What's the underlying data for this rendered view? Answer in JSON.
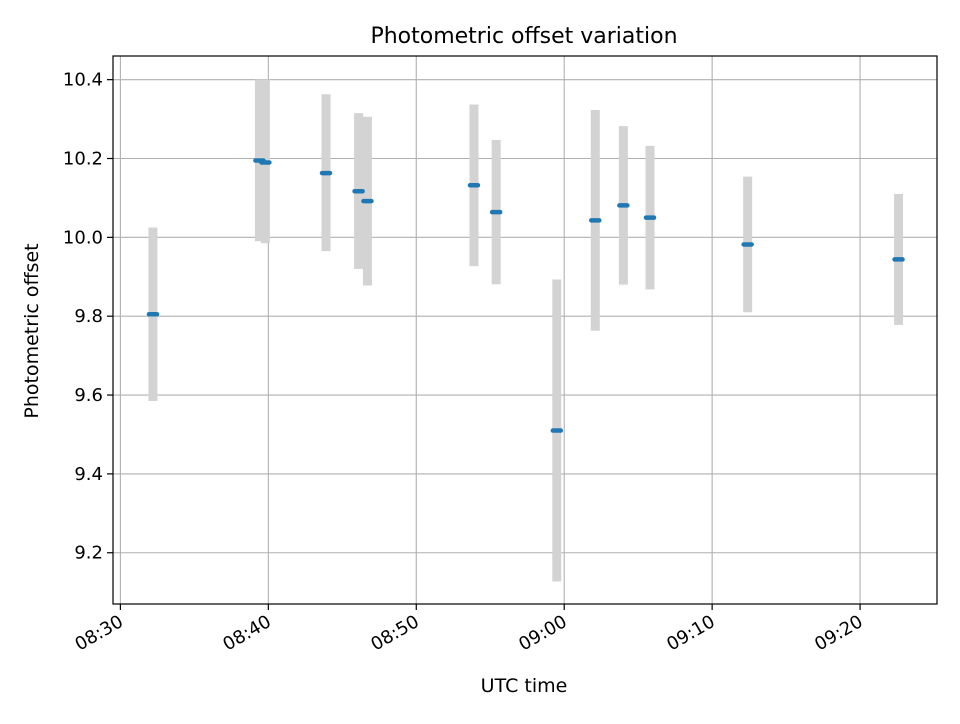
{
  "chart_data": {
    "type": "scatter",
    "title": "Photometric offset variation",
    "xlabel": "UTC time",
    "ylabel": "Photometric offset",
    "x_ticks": [
      "08:30",
      "08:40",
      "08:50",
      "09:00",
      "09:10",
      "09:20"
    ],
    "y_ticks": [
      "9.2",
      "9.4",
      "9.6",
      "9.8",
      "10.0",
      "10.2",
      "10.4"
    ],
    "xlim": [
      "08:29.5",
      "09:25.2"
    ],
    "ylim": [
      9.07,
      10.46
    ],
    "grid": true,
    "colors": {
      "marker": "#1f77b4",
      "errorbar": "#d3d3d3",
      "grid": "#b0b0b0"
    },
    "series": [
      {
        "points": [
          {
            "x": "08:32.2",
            "y": 9.805,
            "ylow": 9.585,
            "yhigh": 10.025
          },
          {
            "x": "08:39.4",
            "y": 10.195,
            "ylow": 9.99,
            "yhigh": 10.4
          },
          {
            "x": "08:39.8",
            "y": 10.19,
            "ylow": 9.985,
            "yhigh": 10.4
          },
          {
            "x": "08:43.9",
            "y": 10.163,
            "ylow": 9.965,
            "yhigh": 10.363
          },
          {
            "x": "08:46.1",
            "y": 10.117,
            "ylow": 9.92,
            "yhigh": 10.315
          },
          {
            "x": "08:46.7",
            "y": 10.092,
            "ylow": 9.878,
            "yhigh": 10.306
          },
          {
            "x": "08:53.9",
            "y": 10.132,
            "ylow": 9.927,
            "yhigh": 10.337
          },
          {
            "x": "08:55.4",
            "y": 10.064,
            "ylow": 9.881,
            "yhigh": 10.247
          },
          {
            "x": "08:59.5",
            "y": 9.51,
            "ylow": 9.127,
            "yhigh": 9.893
          },
          {
            "x": "09:02.1",
            "y": 10.043,
            "ylow": 9.763,
            "yhigh": 10.323
          },
          {
            "x": "09:04.0",
            "y": 10.081,
            "ylow": 9.88,
            "yhigh": 10.282
          },
          {
            "x": "09:05.8",
            "y": 10.05,
            "ylow": 9.868,
            "yhigh": 10.232
          },
          {
            "x": "09:12.4",
            "y": 9.982,
            "ylow": 9.81,
            "yhigh": 10.154
          },
          {
            "x": "09:22.6",
            "y": 9.944,
            "ylow": 9.778,
            "yhigh": 10.11
          }
        ]
      }
    ]
  }
}
